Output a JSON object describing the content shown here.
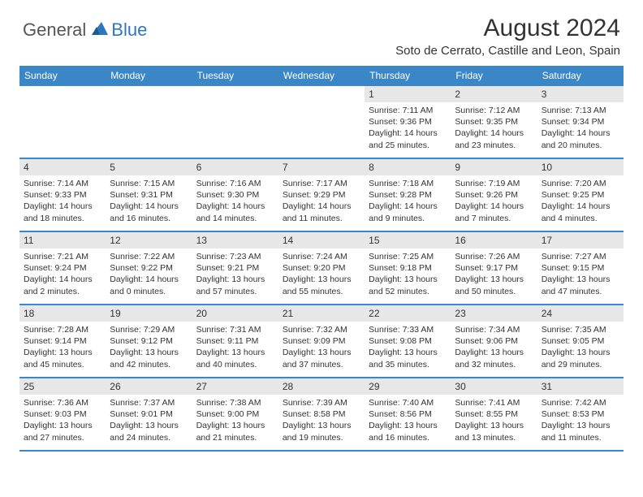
{
  "logo": {
    "general": "General",
    "blue": "Blue"
  },
  "title": "August 2024",
  "location": "Soto de Cerrato, Castille and Leon, Spain",
  "colors": {
    "header_bg": "#3b86c6",
    "band_bg": "#e7e7e7",
    "rule": "#3b86c6",
    "text": "#333333",
    "logo_blue": "#2f77bb"
  },
  "daysOfWeek": [
    "Sunday",
    "Monday",
    "Tuesday",
    "Wednesday",
    "Thursday",
    "Friday",
    "Saturday"
  ],
  "weeks": [
    [
      null,
      null,
      null,
      null,
      {
        "n": "1",
        "sr": "7:11 AM",
        "ss": "9:36 PM",
        "d1": "Daylight: 14 hours",
        "d2": "and 25 minutes."
      },
      {
        "n": "2",
        "sr": "7:12 AM",
        "ss": "9:35 PM",
        "d1": "Daylight: 14 hours",
        "d2": "and 23 minutes."
      },
      {
        "n": "3",
        "sr": "7:13 AM",
        "ss": "9:34 PM",
        "d1": "Daylight: 14 hours",
        "d2": "and 20 minutes."
      }
    ],
    [
      {
        "n": "4",
        "sr": "7:14 AM",
        "ss": "9:33 PM",
        "d1": "Daylight: 14 hours",
        "d2": "and 18 minutes."
      },
      {
        "n": "5",
        "sr": "7:15 AM",
        "ss": "9:31 PM",
        "d1": "Daylight: 14 hours",
        "d2": "and 16 minutes."
      },
      {
        "n": "6",
        "sr": "7:16 AM",
        "ss": "9:30 PM",
        "d1": "Daylight: 14 hours",
        "d2": "and 14 minutes."
      },
      {
        "n": "7",
        "sr": "7:17 AM",
        "ss": "9:29 PM",
        "d1": "Daylight: 14 hours",
        "d2": "and 11 minutes."
      },
      {
        "n": "8",
        "sr": "7:18 AM",
        "ss": "9:28 PM",
        "d1": "Daylight: 14 hours",
        "d2": "and 9 minutes."
      },
      {
        "n": "9",
        "sr": "7:19 AM",
        "ss": "9:26 PM",
        "d1": "Daylight: 14 hours",
        "d2": "and 7 minutes."
      },
      {
        "n": "10",
        "sr": "7:20 AM",
        "ss": "9:25 PM",
        "d1": "Daylight: 14 hours",
        "d2": "and 4 minutes."
      }
    ],
    [
      {
        "n": "11",
        "sr": "7:21 AM",
        "ss": "9:24 PM",
        "d1": "Daylight: 14 hours",
        "d2": "and 2 minutes."
      },
      {
        "n": "12",
        "sr": "7:22 AM",
        "ss": "9:22 PM",
        "d1": "Daylight: 14 hours",
        "d2": "and 0 minutes."
      },
      {
        "n": "13",
        "sr": "7:23 AM",
        "ss": "9:21 PM",
        "d1": "Daylight: 13 hours",
        "d2": "and 57 minutes."
      },
      {
        "n": "14",
        "sr": "7:24 AM",
        "ss": "9:20 PM",
        "d1": "Daylight: 13 hours",
        "d2": "and 55 minutes."
      },
      {
        "n": "15",
        "sr": "7:25 AM",
        "ss": "9:18 PM",
        "d1": "Daylight: 13 hours",
        "d2": "and 52 minutes."
      },
      {
        "n": "16",
        "sr": "7:26 AM",
        "ss": "9:17 PM",
        "d1": "Daylight: 13 hours",
        "d2": "and 50 minutes."
      },
      {
        "n": "17",
        "sr": "7:27 AM",
        "ss": "9:15 PM",
        "d1": "Daylight: 13 hours",
        "d2": "and 47 minutes."
      }
    ],
    [
      {
        "n": "18",
        "sr": "7:28 AM",
        "ss": "9:14 PM",
        "d1": "Daylight: 13 hours",
        "d2": "and 45 minutes."
      },
      {
        "n": "19",
        "sr": "7:29 AM",
        "ss": "9:12 PM",
        "d1": "Daylight: 13 hours",
        "d2": "and 42 minutes."
      },
      {
        "n": "20",
        "sr": "7:31 AM",
        "ss": "9:11 PM",
        "d1": "Daylight: 13 hours",
        "d2": "and 40 minutes."
      },
      {
        "n": "21",
        "sr": "7:32 AM",
        "ss": "9:09 PM",
        "d1": "Daylight: 13 hours",
        "d2": "and 37 minutes."
      },
      {
        "n": "22",
        "sr": "7:33 AM",
        "ss": "9:08 PM",
        "d1": "Daylight: 13 hours",
        "d2": "and 35 minutes."
      },
      {
        "n": "23",
        "sr": "7:34 AM",
        "ss": "9:06 PM",
        "d1": "Daylight: 13 hours",
        "d2": "and 32 minutes."
      },
      {
        "n": "24",
        "sr": "7:35 AM",
        "ss": "9:05 PM",
        "d1": "Daylight: 13 hours",
        "d2": "and 29 minutes."
      }
    ],
    [
      {
        "n": "25",
        "sr": "7:36 AM",
        "ss": "9:03 PM",
        "d1": "Daylight: 13 hours",
        "d2": "and 27 minutes."
      },
      {
        "n": "26",
        "sr": "7:37 AM",
        "ss": "9:01 PM",
        "d1": "Daylight: 13 hours",
        "d2": "and 24 minutes."
      },
      {
        "n": "27",
        "sr": "7:38 AM",
        "ss": "9:00 PM",
        "d1": "Daylight: 13 hours",
        "d2": "and 21 minutes."
      },
      {
        "n": "28",
        "sr": "7:39 AM",
        "ss": "8:58 PM",
        "d1": "Daylight: 13 hours",
        "d2": "and 19 minutes."
      },
      {
        "n": "29",
        "sr": "7:40 AM",
        "ss": "8:56 PM",
        "d1": "Daylight: 13 hours",
        "d2": "and 16 minutes."
      },
      {
        "n": "30",
        "sr": "7:41 AM",
        "ss": "8:55 PM",
        "d1": "Daylight: 13 hours",
        "d2": "and 13 minutes."
      },
      {
        "n": "31",
        "sr": "7:42 AM",
        "ss": "8:53 PM",
        "d1": "Daylight: 13 hours",
        "d2": "and 11 minutes."
      }
    ]
  ],
  "labels": {
    "sunrise": "Sunrise: ",
    "sunset": "Sunset: "
  }
}
